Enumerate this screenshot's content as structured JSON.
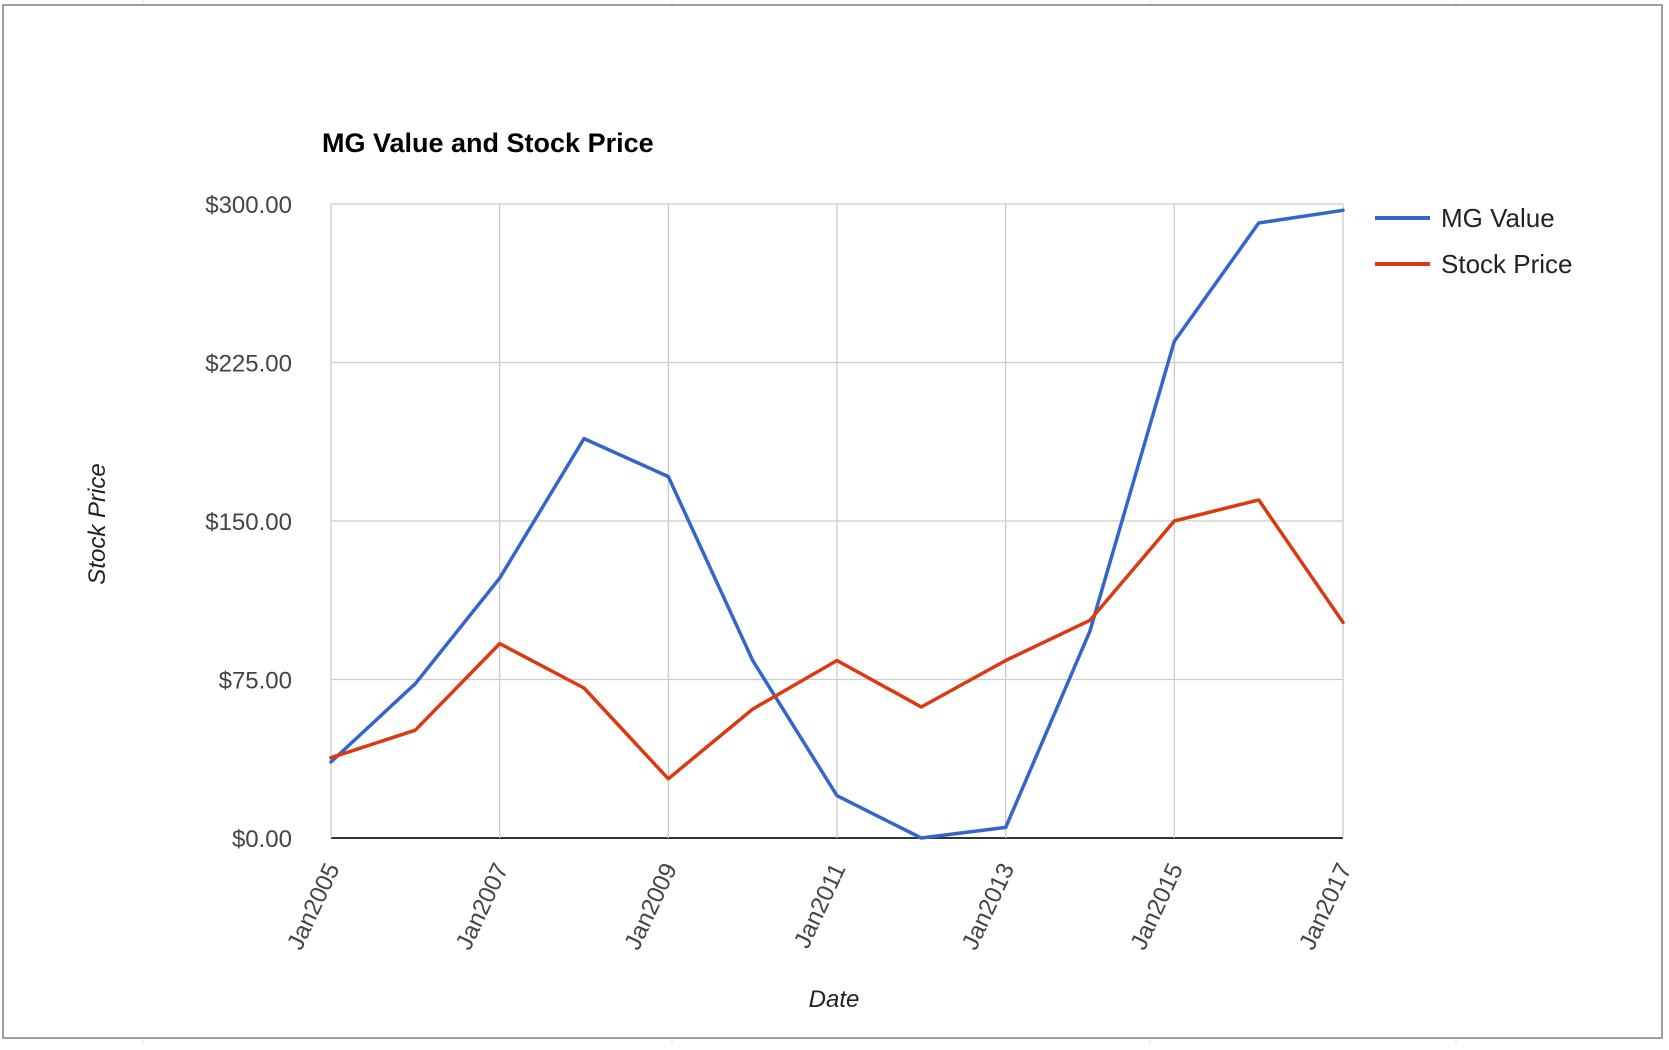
{
  "chart_data": {
    "type": "line",
    "title": "MG Value and Stock Price",
    "xlabel": "Date",
    "ylabel": "Stock Price",
    "x": [
      "2005-01",
      "2006-01",
      "2007-01",
      "2008-01",
      "2009-01",
      "2010-01",
      "2011-01",
      "2012-01",
      "2013-01",
      "2014-01",
      "2015-01",
      "2016-01",
      "2017-01"
    ],
    "x_ticks": [
      "Jan2005",
      "Jan2007",
      "Jan2009",
      "Jan2011",
      "Jan2013",
      "Jan2015",
      "Jan2017"
    ],
    "y_ticks": [
      "$0.00",
      "$75.00",
      "$150.00",
      "$225.00",
      "$300.00"
    ],
    "ylim": [
      0,
      300
    ],
    "grid": true,
    "legend_position": "right",
    "series": [
      {
        "name": "MG Value",
        "color": "#3366cc",
        "values": [
          36,
          73,
          123,
          189,
          171,
          84,
          20,
          0,
          5,
          98,
          235,
          291,
          297
        ]
      },
      {
        "name": "Stock Price",
        "color": "#dc3912",
        "values": [
          38,
          51,
          92,
          71,
          28,
          61,
          84,
          62,
          84,
          103,
          150,
          160,
          102
        ]
      }
    ]
  }
}
